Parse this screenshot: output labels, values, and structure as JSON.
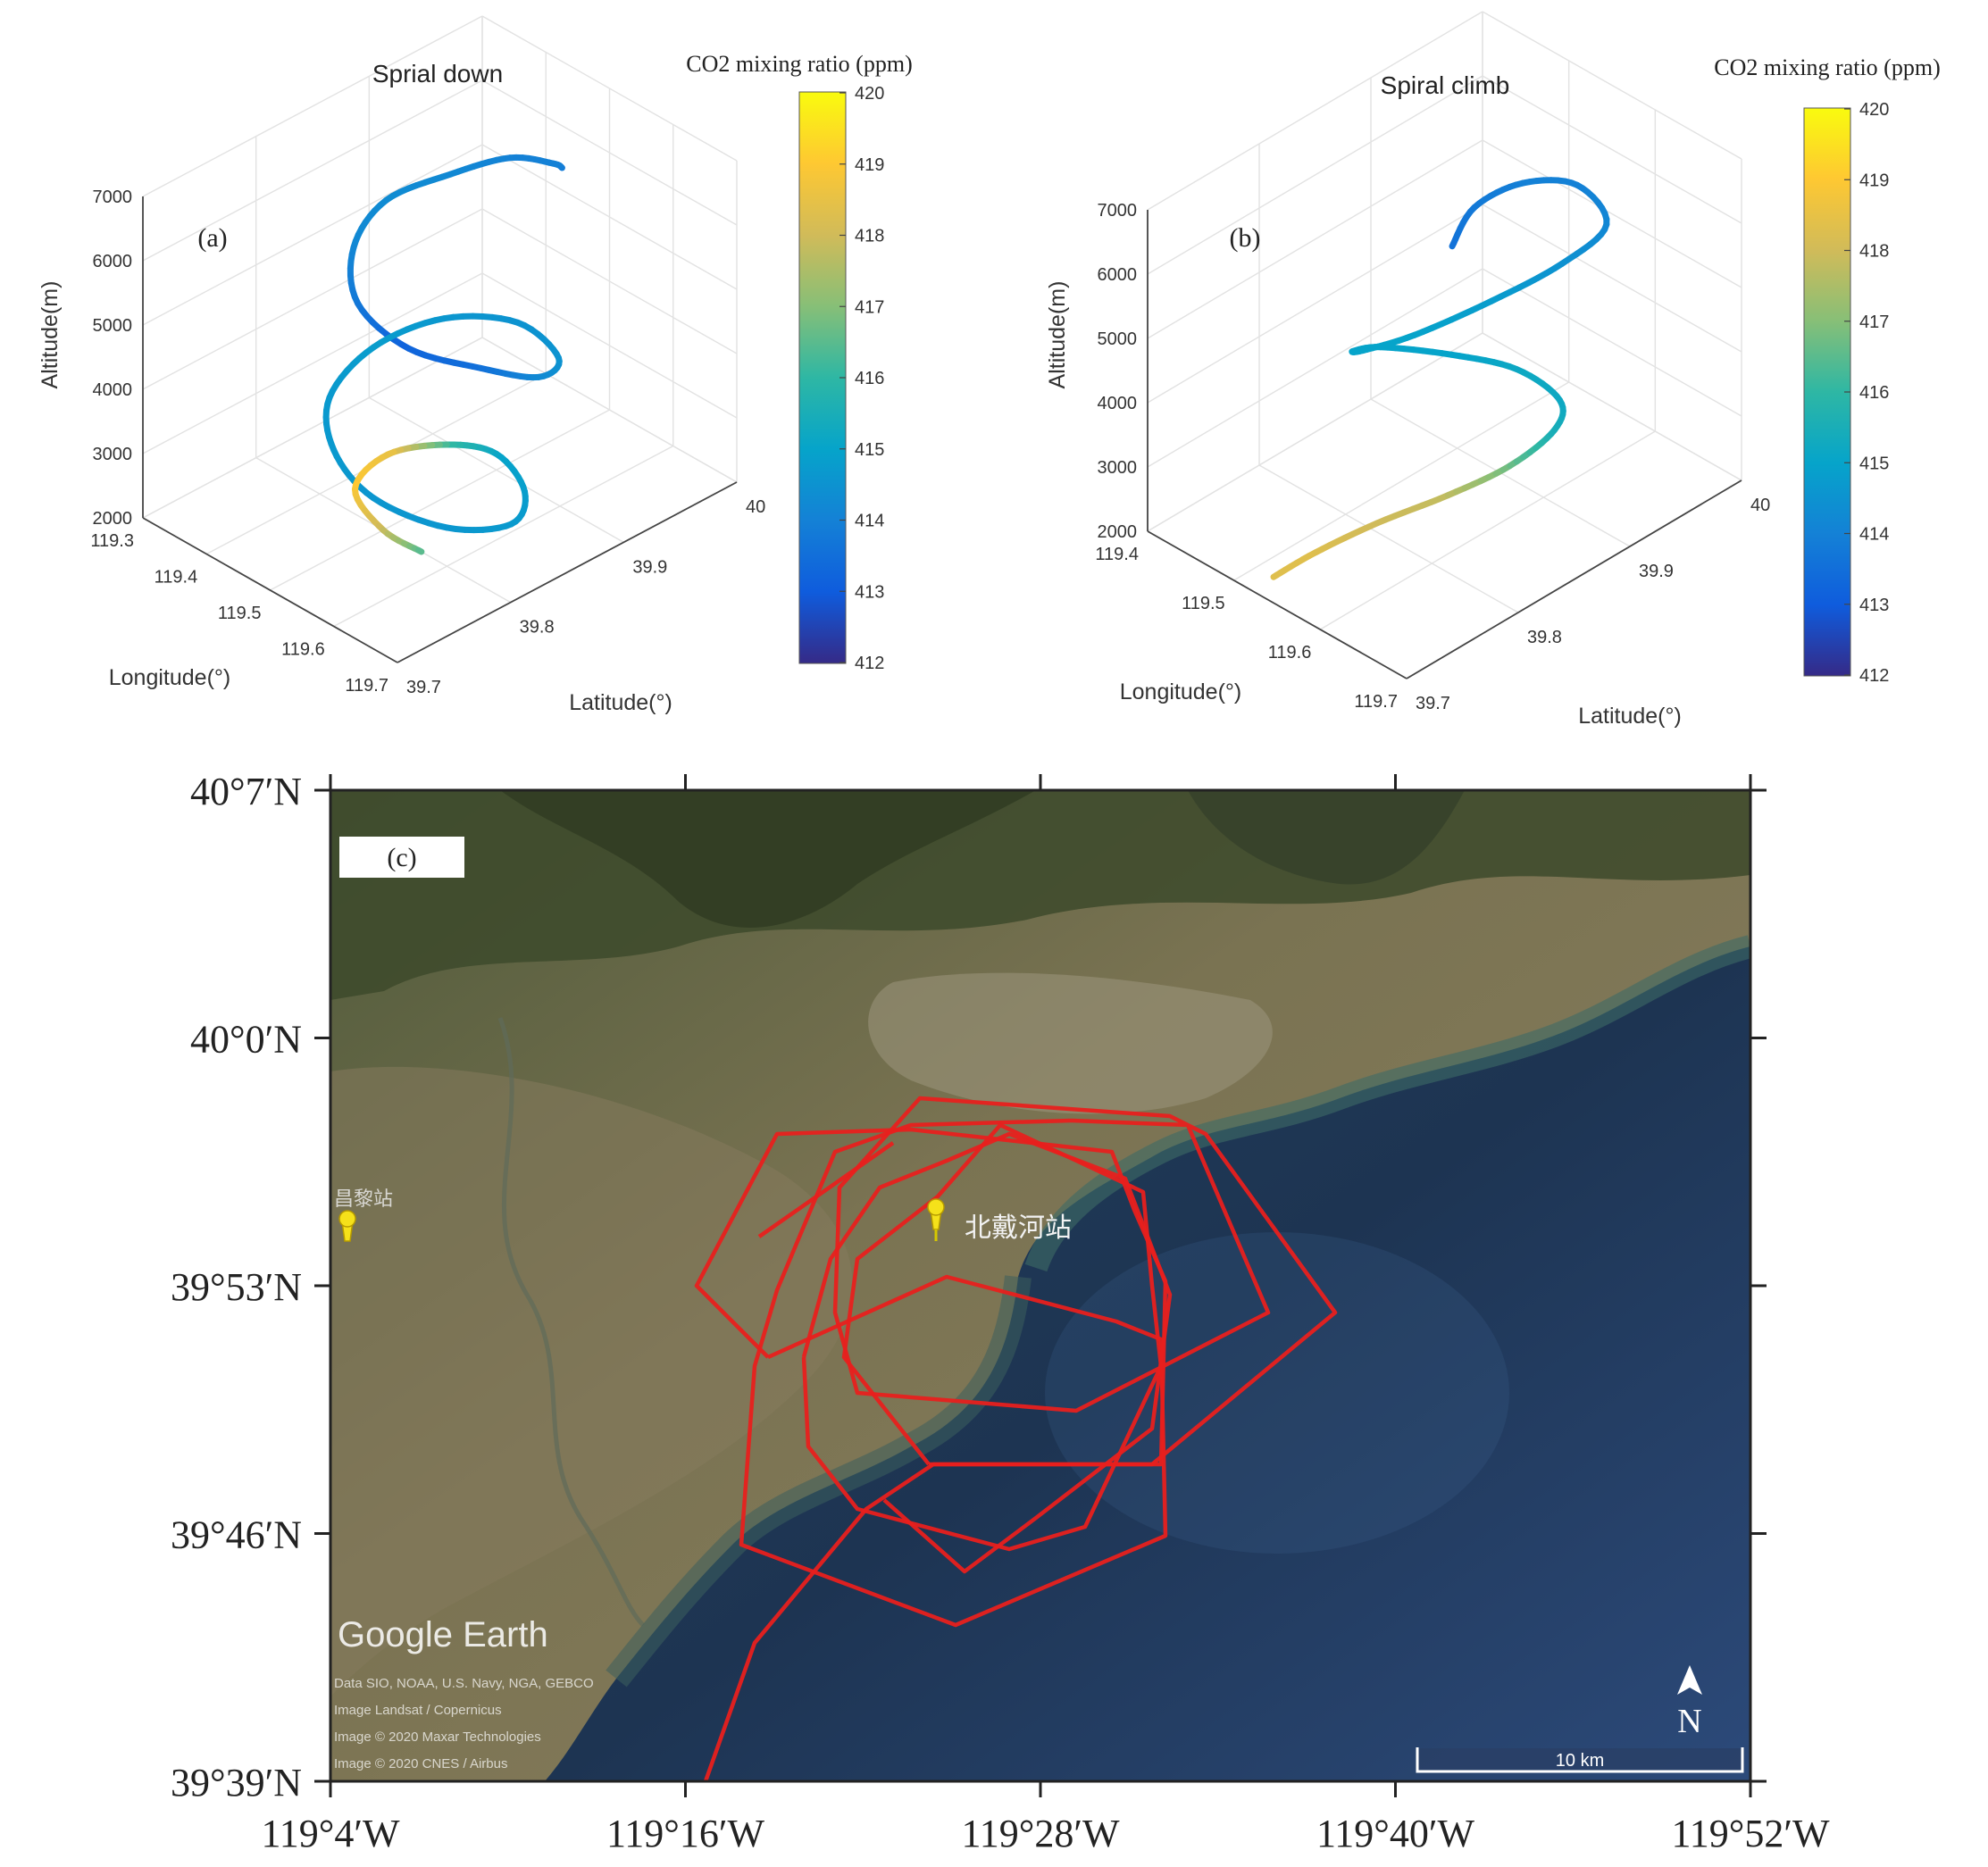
{
  "chart_data": [
    {
      "type": "line3d",
      "panel_label": "(a)",
      "title": "Sprial down",
      "xlabel": "Longitude(°)",
      "ylabel": "Latitude(°)",
      "zlabel": "Altitude(m)",
      "x_ticks": [
        "119.3",
        "119.4",
        "119.5",
        "119.6",
        "119.7"
      ],
      "y_ticks": [
        "39.7",
        "39.8",
        "39.9",
        "40"
      ],
      "z_ticks": [
        "2000",
        "3000",
        "4000",
        "5000",
        "6000",
        "7000"
      ],
      "xlim": [
        119.3,
        119.7
      ],
      "ylim": [
        39.7,
        40.0
      ],
      "zlim": [
        2000,
        7000
      ],
      "grid": true,
      "colorbar": {
        "title": "CO2 mixing ratio (ppm)",
        "ticks": [
          "412",
          "413",
          "414",
          "415",
          "416",
          "417",
          "418",
          "419",
          "420"
        ],
        "range": [
          412,
          420
        ],
        "colormap": "parula"
      },
      "series": [
        {
          "lon": [
            119.55,
            119.5,
            119.45,
            119.41,
            119.38,
            119.4,
            119.46,
            119.54,
            119.6,
            119.62,
            119.58,
            119.48,
            119.4,
            119.36,
            119.38,
            119.44,
            119.52,
            119.6,
            119.63,
            119.58,
            119.5,
            119.44,
            119.4,
            119.42,
            119.5,
            119.56
          ],
          "lat": [
            39.93,
            39.95,
            39.94,
            39.91,
            39.87,
            39.83,
            39.8,
            39.8,
            39.83,
            39.87,
            39.91,
            39.93,
            39.91,
            39.87,
            39.82,
            39.79,
            39.78,
            39.8,
            39.84,
            39.88,
            39.9,
            39.89,
            39.86,
            39.82,
            39.8,
            39.8
          ],
          "alt": [
            6700,
            6300,
            6200,
            6000,
            5800,
            5550,
            5300,
            5050,
            4800,
            4400,
            4100,
            3900,
            3700,
            3400,
            3200,
            3000,
            2800,
            2600,
            2450,
            2300,
            2250,
            2150,
            2050,
            2000,
            2000,
            2000
          ],
          "co2": [
            413.8,
            414.0,
            414.0,
            414.2,
            414.3,
            414.2,
            413.8,
            413.2,
            413.5,
            414.2,
            414.5,
            414.5,
            414.6,
            414.8,
            414.7,
            414.7,
            414.6,
            414.6,
            414.7,
            414.8,
            415.0,
            416.0,
            418.5,
            419.0,
            418.0,
            416.5
          ]
        }
      ]
    },
    {
      "type": "line3d",
      "panel_label": "(b)",
      "title": "Spiral climb",
      "xlabel": "Longitude(°)",
      "ylabel": "Latitude(°)",
      "zlabel": "Altitude(m)",
      "x_ticks": [
        "119.4",
        "119.5",
        "119.6",
        "119.7"
      ],
      "y_ticks": [
        "39.7",
        "39.8",
        "39.9",
        "40"
      ],
      "z_ticks": [
        "2000",
        "3000",
        "4000",
        "5000",
        "6000",
        "7000"
      ],
      "xlim": [
        119.4,
        119.7
      ],
      "ylim": [
        39.7,
        40.0
      ],
      "zlim": [
        2000,
        7000
      ],
      "grid": true,
      "colorbar": {
        "title": "CO2 mixing ratio (ppm)",
        "ticks": [
          "412",
          "413",
          "414",
          "415",
          "416",
          "417",
          "418",
          "419",
          "420"
        ],
        "range": [
          412,
          420
        ],
        "colormap": "parula"
      },
      "series": [
        {
          "lon": [
            119.52,
            119.53,
            119.55,
            119.58,
            119.6,
            119.6,
            119.58,
            119.53,
            119.48,
            119.45,
            119.47,
            119.52,
            119.58,
            119.63,
            119.66,
            119.66,
            119.6,
            119.55,
            119.52,
            119.52
          ],
          "lat": [
            39.72,
            39.75,
            39.79,
            39.83,
            39.87,
            39.91,
            39.93,
            39.93,
            39.91,
            39.87,
            39.83,
            39.8,
            39.8,
            39.83,
            39.87,
            39.91,
            39.93,
            39.92,
            39.9,
            39.88
          ],
          "alt": [
            2000,
            2150,
            2350,
            2600,
            2800,
            2950,
            3050,
            3150,
            3200,
            3500,
            4000,
            4700,
            5400,
            6000,
            6400,
            6600,
            6550,
            6300,
            5900,
            5500
          ],
          "co2": [
            418.3,
            418.3,
            418.0,
            417.8,
            416.8,
            415.5,
            415.2,
            415.2,
            415.0,
            415.0,
            415.0,
            415.0,
            415.0,
            414.8,
            414.5,
            414.2,
            414.0,
            414.0,
            413.8,
            413.6
          ]
        }
      ]
    },
    {
      "type": "map",
      "panel_label": "(c)",
      "x_ticks": [
        "119°4′W",
        "119°16′W",
        "119°28′W",
        "119°40′W",
        "119°52′W"
      ],
      "y_ticks": [
        "40°7′N",
        "40°0′N",
        "39°53′N",
        "39°46′N",
        "39°39′N"
      ],
      "station_label": "北戴河站",
      "left_marker_label": "昌黎站",
      "watermark": "Google Earth",
      "attribution": [
        "Data SIO, NOAA, U.S. Navy, NGA, GEBCO",
        "Image Landsat / Copernicus",
        "Image © 2020 Maxar Technologies",
        "Image © 2020 CNES / Airbus"
      ],
      "north_label": "N",
      "scale_label": "10 km",
      "track_color": "#e8201e"
    }
  ]
}
